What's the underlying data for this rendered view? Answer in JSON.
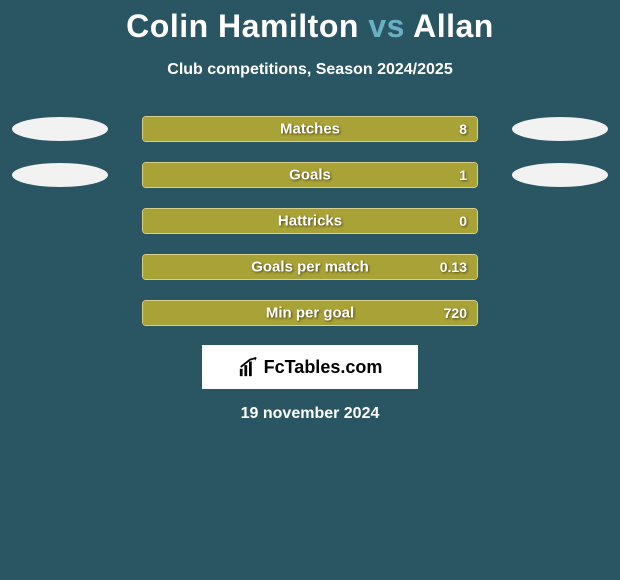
{
  "background_color": "#2a5663",
  "title": {
    "player1": "Colin Hamilton",
    "vs": "vs",
    "player2": "Allan",
    "player_color": "#ffffff",
    "vs_color": "#6ab0c4",
    "fontsize": 32
  },
  "subtitle": {
    "text": "Club competitions, Season 2024/2025",
    "fontsize": 16,
    "color": "#ffffff"
  },
  "bar_style": {
    "fill_color": "#a9a236",
    "border_color": "#d8d088",
    "text_color": "#ffffff",
    "label_fontsize": 15,
    "value_fontsize": 14
  },
  "oval_style": {
    "color_left": "#f2f2f2",
    "color_right": "#f2f2f2",
    "width": 96,
    "height": 24
  },
  "stats": [
    {
      "label": "Matches",
      "left_val": "",
      "right_val": "8",
      "left_fill_pct": 0,
      "right_fill_pct": 100,
      "show_left_oval": true,
      "show_right_oval": true
    },
    {
      "label": "Goals",
      "left_val": "",
      "right_val": "1",
      "left_fill_pct": 0,
      "right_fill_pct": 100,
      "show_left_oval": true,
      "show_right_oval": true
    },
    {
      "label": "Hattricks",
      "left_val": "",
      "right_val": "0",
      "left_fill_pct": 0,
      "right_fill_pct": 100,
      "show_left_oval": false,
      "show_right_oval": false
    },
    {
      "label": "Goals per match",
      "left_val": "",
      "right_val": "0.13",
      "left_fill_pct": 0,
      "right_fill_pct": 100,
      "show_left_oval": false,
      "show_right_oval": false
    },
    {
      "label": "Min per goal",
      "left_val": "",
      "right_val": "720",
      "left_fill_pct": 0,
      "right_fill_pct": 100,
      "show_left_oval": false,
      "show_right_oval": false
    }
  ],
  "logo": {
    "text": "FcTables.com",
    "background": "#ffffff",
    "text_color": "#000000",
    "fontsize": 18
  },
  "date": {
    "text": "19 november 2024",
    "fontsize": 16,
    "color": "#ffffff"
  }
}
